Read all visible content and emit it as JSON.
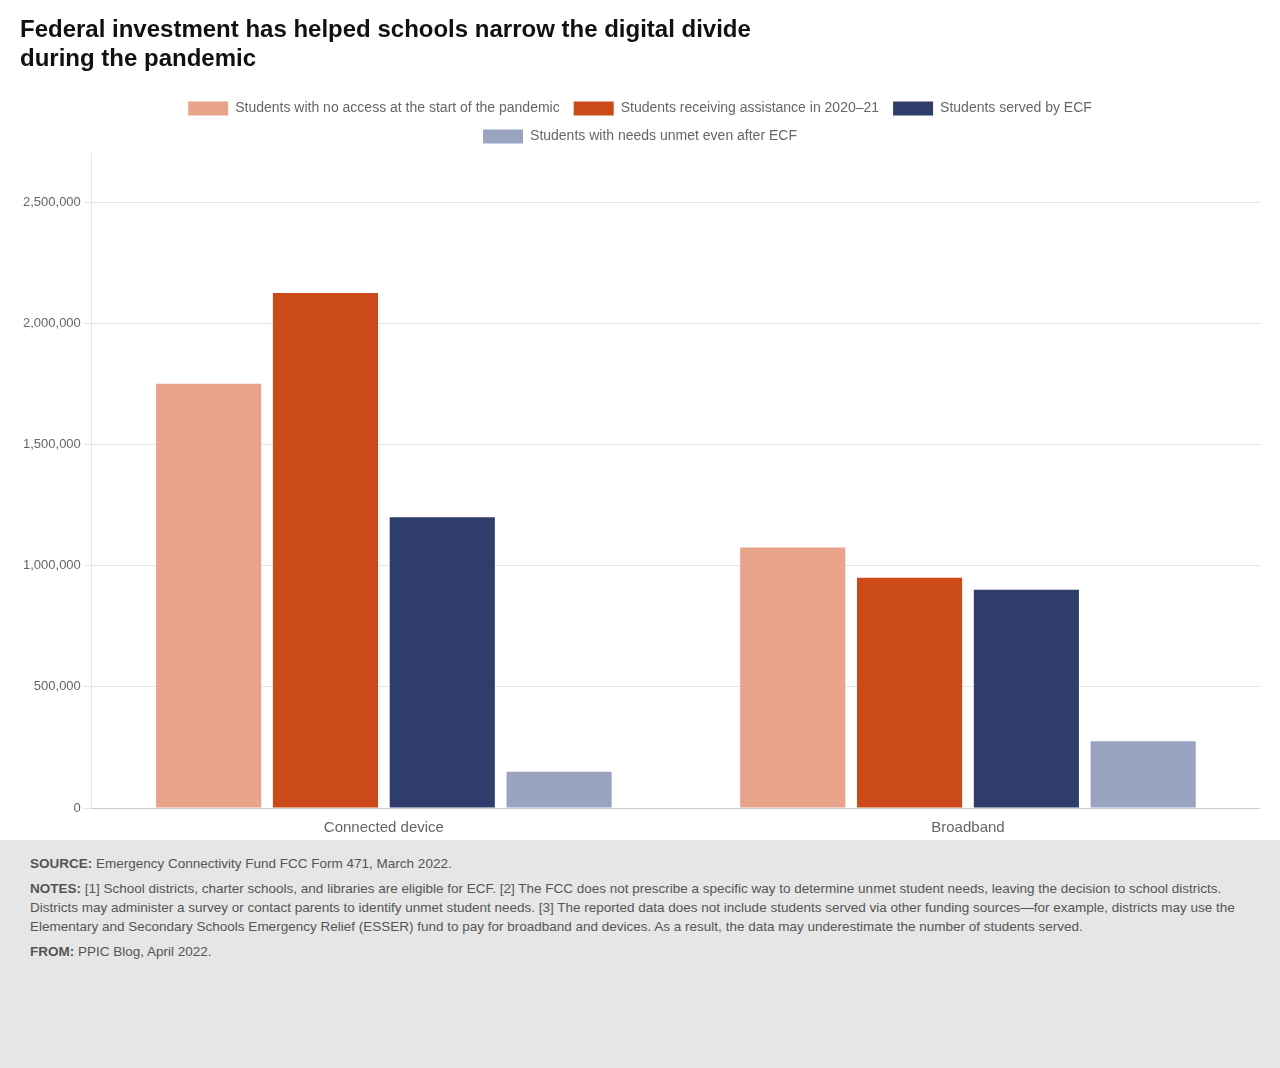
{
  "chart_data": {
    "type": "bar",
    "title": [
      "Federal investment has helped schools narrow the digital divide",
      "during the pandemic"
    ],
    "categories": [
      "Connected device",
      "Broadband"
    ],
    "series": [
      {
        "name": "Students with no access at the start of the pandemic",
        "color": "#e8a48a",
        "values": [
          1750000,
          1075000
        ]
      },
      {
        "name": "Students receiving assistance in 2020–21",
        "color": "#cc4a1a",
        "values": [
          2125000,
          950000
        ]
      },
      {
        "name": "Students served by ECF",
        "color": "#2e3d6b",
        "values": [
          1200000,
          900000
        ]
      },
      {
        "name": "Students with needs unmet even after ECF",
        "color": "#9aa3c0",
        "values": [
          150000,
          275000
        ]
      }
    ],
    "ylim": [
      0,
      2700000
    ],
    "yticks": [
      0,
      {
        "value": 500000,
        "label": "500,000"
      },
      {
        "value": 1000000,
        "label": "1,000,000"
      },
      {
        "value": 1500000,
        "label": "1,500,000"
      },
      {
        "value": 2000000,
        "label": "2,000,000"
      },
      {
        "value": 2500000,
        "label": "2,500,000"
      }
    ],
    "grid": true,
    "legend": "top",
    "annotations": [
      "SOURCE: Emergency Connectivity Fund FCC Form 471, March 2022.",
      "NOTES: [1] School districts, charter schools, and libraries are eligible for ECF. [2] The FCC does not prescribe a specific way to determine unmet student needs, leaving the decision to school districts. Districts may administer a survey or contact parents to identify unmet student needs. [3] The reported data does not include students served via other funding sources—for example, districts may use the Elementary and Secondary Schools Emergency Relief (ESSER) fund to pay for broadband and devices. As a result, the data may underestimate the number of students served.",
      "FROM: PPIC Blog, April 2022."
    ]
  }
}
